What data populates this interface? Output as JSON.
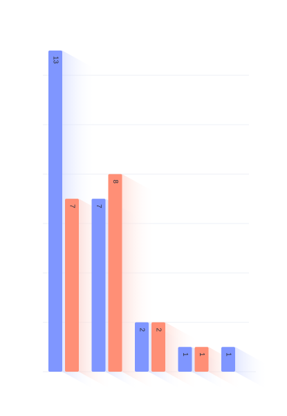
{
  "chart_data": {
    "type": "bar",
    "categories": [
      "",
      "",
      "",
      "",
      ""
    ],
    "series": [
      {
        "values": [
          13,
          7,
          2,
          1,
          1
        ],
        "color": "#7f96ff"
      },
      {
        "values": [
          7,
          8,
          2,
          1,
          null
        ],
        "color": "#ff8f76"
      }
    ],
    "ylim": [
      0,
      13
    ],
    "grid": false,
    "legend": "none",
    "data_labels": true,
    "data_label_rotation": 90
  }
}
